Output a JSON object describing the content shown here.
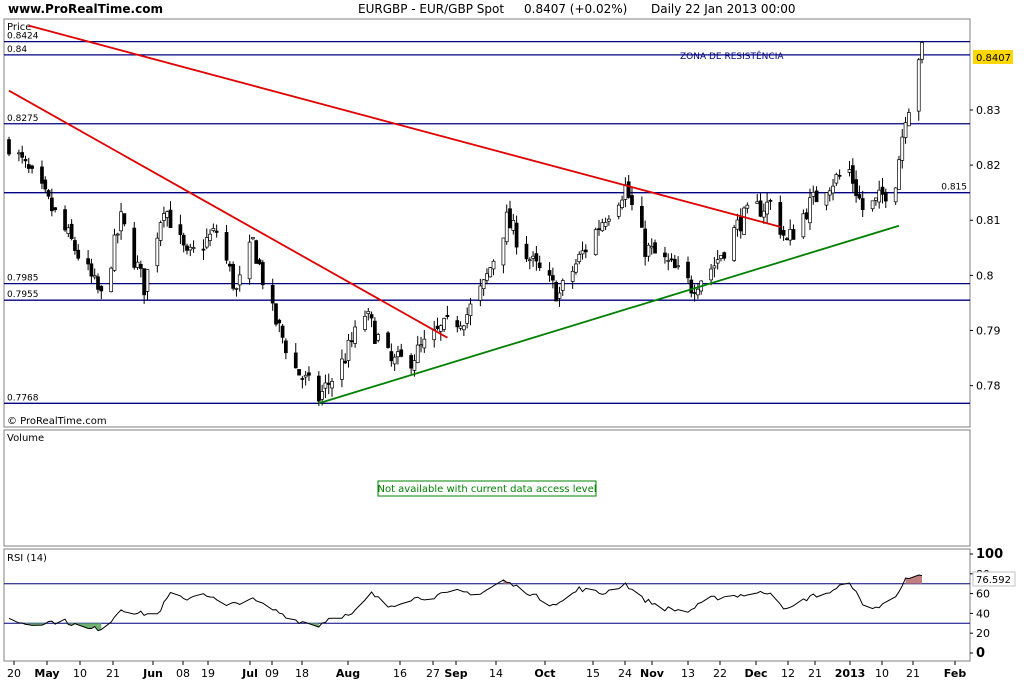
{
  "header": {
    "site": "www.ProRealTime.com",
    "instrument": "EURGBP - EUR/GBP Spot",
    "last": "0.8407 (+0.02%)",
    "period": "Daily  22 Jan 2013 00:00"
  },
  "price_panel": {
    "label": "Price",
    "watermark": "© ProRealTime.com",
    "current_value_label": "0.8407",
    "resistance_label": "ZONA DE RESISTÊNCIA",
    "colors": {
      "up": "#ffffff",
      "down": "#000000",
      "hlines": "#000080",
      "red_trend": "#e00000",
      "green_trend": "#008000",
      "value_tag": "#ffd700"
    }
  },
  "volume_panel": {
    "label": "Volume",
    "notice": "Not available with current data access level"
  },
  "rsi_panel": {
    "label": "RSI (14)",
    "current_value_label": "76.592",
    "colors": {
      "line": "#000000",
      "overbought_fill": "#c08080",
      "oversold_fill": "#70b070",
      "levels": "#000080"
    }
  },
  "x_axis": {
    "labels": [
      {
        "t": "20",
        "bold": false
      },
      {
        "t": "May",
        "bold": true
      },
      {
        "t": "10",
        "bold": false
      },
      {
        "t": "21",
        "bold": false
      },
      {
        "t": "Jun",
        "bold": true
      },
      {
        "t": "08",
        "bold": false
      },
      {
        "t": "19",
        "bold": false
      },
      {
        "t": "Jul",
        "bold": true
      },
      {
        "t": "09",
        "bold": false
      },
      {
        "t": "18",
        "bold": false
      },
      {
        "t": "Aug",
        "bold": true
      },
      {
        "t": "16",
        "bold": false
      },
      {
        "t": "27",
        "bold": false
      },
      {
        "t": "Sep",
        "bold": true
      },
      {
        "t": "14",
        "bold": false
      },
      {
        "t": "Oct",
        "bold": true
      },
      {
        "t": "15",
        "bold": false
      },
      {
        "t": "24",
        "bold": false
      },
      {
        "t": "Nov",
        "bold": true
      },
      {
        "t": "13",
        "bold": false
      },
      {
        "t": "22",
        "bold": false
      },
      {
        "t": "Dec",
        "bold": true
      },
      {
        "t": "12",
        "bold": false
      },
      {
        "t": "21",
        "bold": false
      },
      {
        "t": "2013",
        "bold": true
      },
      {
        "t": "10",
        "bold": false
      },
      {
        "t": "21",
        "bold": false
      },
      {
        "t": "Feb",
        "bold": true
      }
    ]
  },
  "chart_data": [
    {
      "type": "candlestick",
      "title": "EURGBP - EUR/GBP Spot",
      "period": "Daily",
      "ylim": [
        0.7725,
        0.8465
      ],
      "y_ticks": [
        "0.78",
        "0.79",
        "0.8",
        "0.81",
        "0.82",
        "0.83"
      ],
      "x_range": [
        "2012-04-20",
        "2013-02-01"
      ],
      "horizontal_levels": [
        {
          "value": 0.8424,
          "label": "0.8424",
          "side": "left"
        },
        {
          "value": 0.84,
          "label": "0.84",
          "side": "left"
        },
        {
          "value": 0.8275,
          "label": "0.8275",
          "side": "left"
        },
        {
          "value": 0.815,
          "label": "0.815",
          "side": "right"
        },
        {
          "value": 0.7985,
          "label": "0.7985",
          "side": "left"
        },
        {
          "value": 0.7955,
          "label": "0.7955",
          "side": "left"
        },
        {
          "value": 0.7768,
          "label": "0.7768",
          "side": "left"
        }
      ],
      "trendlines": [
        {
          "name": "red-long",
          "color": "#e00000",
          "from": [
            "2012-04-26",
            0.8453
          ],
          "to": [
            "2012-12-10",
            0.8088
          ]
        },
        {
          "name": "red-short",
          "color": "#e00000",
          "from": [
            "2012-04-20",
            0.8335
          ],
          "to": [
            "2012-08-31",
            0.7887
          ]
        },
        {
          "name": "green",
          "color": "#008000",
          "from": [
            "2012-07-23",
            0.7768
          ],
          "to": [
            "2013-01-15",
            0.809
          ]
        }
      ],
      "ohlc_anchors": [
        [
          "2012-04-20",
          0.824
        ],
        [
          "2012-04-30",
          0.815
        ],
        [
          "2012-05-09",
          0.806
        ],
        [
          "2012-05-18",
          0.796
        ],
        [
          "2012-05-24",
          0.81
        ],
        [
          "2012-05-31",
          0.798
        ],
        [
          "2012-06-06",
          0.813
        ],
        [
          "2012-06-13",
          0.803
        ],
        [
          "2012-06-22",
          0.808
        ],
        [
          "2012-06-28",
          0.797
        ],
        [
          "2012-07-03",
          0.806
        ],
        [
          "2012-07-09",
          0.793
        ],
        [
          "2012-07-16",
          0.783
        ],
        [
          "2012-07-23",
          0.7778
        ],
        [
          "2012-07-30",
          0.784
        ],
        [
          "2012-08-06",
          0.793
        ],
        [
          "2012-08-14",
          0.784
        ],
        [
          "2012-08-20",
          0.785
        ],
        [
          "2012-08-29",
          0.79
        ],
        [
          "2012-09-06",
          0.793
        ],
        [
          "2012-09-11",
          0.798
        ],
        [
          "2012-09-18",
          0.81
        ],
        [
          "2012-09-26",
          0.802
        ],
        [
          "2012-10-04",
          0.7965
        ],
        [
          "2012-10-09",
          0.802
        ],
        [
          "2012-10-18",
          0.811
        ],
        [
          "2012-10-24",
          0.816
        ],
        [
          "2012-10-30",
          0.805
        ],
        [
          "2012-11-06",
          0.802
        ],
        [
          "2012-11-13",
          0.798
        ],
        [
          "2012-11-20",
          0.802
        ],
        [
          "2012-11-28",
          0.81
        ],
        [
          "2012-12-03",
          0.812
        ],
        [
          "2012-12-07",
          0.813
        ],
        [
          "2012-12-12",
          0.806
        ],
        [
          "2012-12-18",
          0.812
        ],
        [
          "2012-12-24",
          0.8165
        ],
        [
          "2012-12-31",
          0.819
        ],
        [
          "2013-01-04",
          0.812
        ],
        [
          "2013-01-08",
          0.813
        ],
        [
          "2013-01-14",
          0.8175
        ],
        [
          "2013-01-17",
          0.8295
        ],
        [
          "2013-01-18",
          0.831
        ],
        [
          "2013-01-21",
          0.84
        ],
        [
          "2013-01-22",
          0.8407
        ]
      ],
      "last_value": 0.8407
    },
    {
      "type": "line",
      "title": "RSI (14)",
      "ylim": [
        0,
        100
      ],
      "y_ticks": [
        "0",
        "20",
        "40",
        "60",
        "80",
        "100"
      ],
      "levels": [
        70,
        30
      ],
      "anchors": [
        [
          "2012-04-20",
          34
        ],
        [
          "2012-04-26",
          29
        ],
        [
          "2012-05-01",
          31
        ],
        [
          "2012-05-07",
          32
        ],
        [
          "2012-05-14",
          24
        ],
        [
          "2012-05-18",
          25
        ],
        [
          "2012-05-21",
          33
        ],
        [
          "2012-05-24",
          45
        ],
        [
          "2012-05-29",
          40
        ],
        [
          "2012-06-04",
          39
        ],
        [
          "2012-06-08",
          60
        ],
        [
          "2012-06-12",
          54
        ],
        [
          "2012-06-18",
          61
        ],
        [
          "2012-06-25",
          47
        ],
        [
          "2012-07-02",
          55
        ],
        [
          "2012-07-09",
          44
        ],
        [
          "2012-07-16",
          33
        ],
        [
          "2012-07-23",
          28
        ],
        [
          "2012-07-27",
          37
        ],
        [
          "2012-08-02",
          38
        ],
        [
          "2012-08-08",
          60
        ],
        [
          "2012-08-13",
          47
        ],
        [
          "2012-08-20",
          55
        ],
        [
          "2012-08-27",
          57
        ],
        [
          "2012-09-03",
          62
        ],
        [
          "2012-09-10",
          60
        ],
        [
          "2012-09-17",
          73
        ],
        [
          "2012-09-24",
          62
        ],
        [
          "2012-10-01",
          50
        ],
        [
          "2012-10-05",
          52
        ],
        [
          "2012-10-10",
          65
        ],
        [
          "2012-10-17",
          60
        ],
        [
          "2012-10-24",
          70
        ],
        [
          "2012-10-29",
          55
        ],
        [
          "2012-11-05",
          45
        ],
        [
          "2012-11-12",
          42
        ],
        [
          "2012-11-19",
          55
        ],
        [
          "2012-11-26",
          58
        ],
        [
          "2012-12-03",
          60
        ],
        [
          "2012-12-07",
          62
        ],
        [
          "2012-12-12",
          43
        ],
        [
          "2012-12-19",
          57
        ],
        [
          "2012-12-26",
          62
        ],
        [
          "2012-12-31",
          73
        ],
        [
          "2013-01-04",
          48
        ],
        [
          "2013-01-09",
          46
        ],
        [
          "2013-01-14",
          58
        ],
        [
          "2013-01-17",
          76
        ],
        [
          "2013-01-19",
          70
        ],
        [
          "2013-01-21",
          78
        ],
        [
          "2013-01-22",
          76.592
        ]
      ],
      "last_value": 76.592
    }
  ]
}
